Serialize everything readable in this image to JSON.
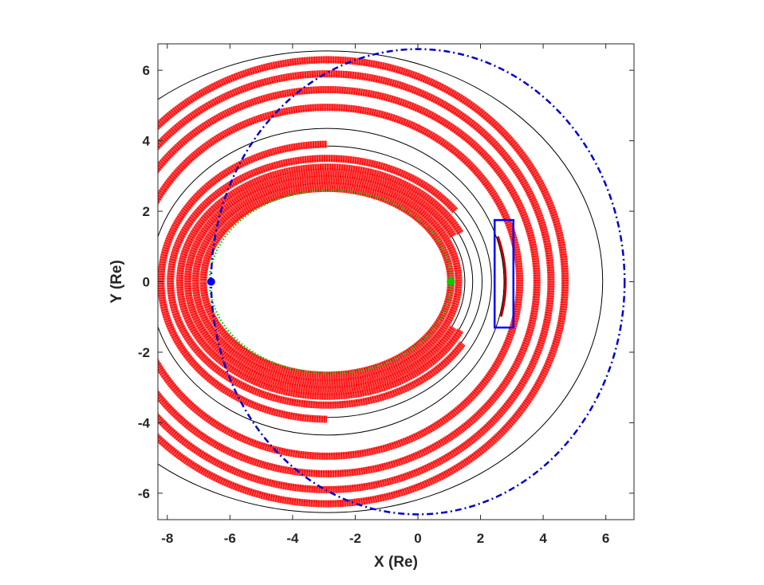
{
  "chart_data": {
    "type": "scatter",
    "title": "",
    "xlabel": "X (Re)",
    "ylabel": "Y (Re)",
    "xlim": [
      -8.3,
      6.9
    ],
    "ylim": [
      -6.75,
      6.75
    ],
    "xticks": [
      -8,
      -6,
      -4,
      -2,
      0,
      2,
      4,
      6
    ],
    "yticks": [
      -6,
      -4,
      -2,
      0,
      2,
      4,
      6
    ],
    "xtick_labels": [
      "-8",
      "-6",
      "-4",
      "-2",
      "0",
      "2",
      "4",
      "6"
    ],
    "ytick_labels": [
      "-6",
      "-4",
      "-2",
      "0",
      "2",
      "4",
      "6"
    ],
    "grid": false,
    "colors": {
      "drift_paths": "#ff0000",
      "reference_contours": "#000000",
      "outer_boundary": "#0000cc",
      "inner_boundary": "#00cc00",
      "highlight_box": "#0000ff",
      "axes": "#262626"
    },
    "reference_contours": [
      {
        "center": [
          -2.9,
          0
        ],
        "rx": 3.9,
        "ry": 2.6
      },
      {
        "center": [
          -2.9,
          0
        ],
        "rx": 4.15,
        "ry": 2.8
      },
      {
        "center": [
          -2.9,
          0
        ],
        "rx": 4.4,
        "ry": 3.0
      },
      {
        "center": [
          -2.9,
          0
        ],
        "rx": 4.65,
        "ry": 3.2
      },
      {
        "center": [
          -2.9,
          0
        ],
        "rx": 4.95,
        "ry": 3.45
      },
      {
        "center": [
          -2.9,
          0
        ],
        "rx": 5.25,
        "ry": 3.85
      },
      {
        "center": [
          -2.9,
          0
        ],
        "rx": 5.65,
        "ry": 4.35
      },
      {
        "center": [
          -2.9,
          0
        ],
        "rx": 6.1,
        "ry": 4.9
      },
      {
        "center": [
          -2.9,
          0
        ],
        "rx": 6.65,
        "ry": 5.4
      },
      {
        "center": [
          -2.9,
          0
        ],
        "rx": 7.1,
        "ry": 5.85
      },
      {
        "center": [
          -2.9,
          0
        ],
        "rx": 7.55,
        "ry": 6.25
      },
      {
        "center": [
          -2.9,
          0
        ],
        "rx": 8.8,
        "ry": 6.55
      }
    ],
    "drift_paths": [
      {
        "center": [
          -2.9,
          0
        ],
        "rx": 3.95,
        "ry": 2.65,
        "gap_deg": [
          0,
          0
        ]
      },
      {
        "center": [
          -2.9,
          0
        ],
        "rx": 4.2,
        "ry": 2.85,
        "gap_deg": [
          0,
          0
        ]
      },
      {
        "center": [
          -2.9,
          0
        ],
        "rx": 4.45,
        "ry": 3.05,
        "gap_deg": [
          -25,
          25
        ]
      },
      {
        "center": [
          -2.9,
          0
        ],
        "rx": 4.7,
        "ry": 3.25,
        "gap_deg": [
          -25,
          25
        ]
      },
      {
        "center": [
          -2.9,
          0
        ],
        "rx": 5.0,
        "ry": 3.5,
        "gap_deg": [
          -30,
          35
        ]
      },
      {
        "center": [
          -2.9,
          0
        ],
        "rx": 5.3,
        "ry": 3.9,
        "gap_deg": [
          -90,
          90
        ]
      },
      {
        "center": [
          -2.9,
          0
        ],
        "rx": 6.15,
        "ry": 4.95,
        "gap_deg": [
          0,
          0
        ]
      },
      {
        "center": [
          -2.9,
          0
        ],
        "rx": 6.7,
        "ry": 5.45,
        "gap_deg": [
          0,
          0
        ]
      },
      {
        "center": [
          -2.9,
          0
        ],
        "rx": 7.15,
        "ry": 5.9,
        "gap_deg": [
          0,
          0
        ]
      },
      {
        "center": [
          -2.9,
          0
        ],
        "rx": 7.6,
        "ry": 6.3,
        "gap_deg": [
          0,
          0
        ]
      }
    ],
    "highlighted_segment": {
      "center": [
        -2.9,
        0
      ],
      "rx": 5.7,
      "ry": 4.4,
      "from_deg": -13,
      "to_deg": 17
    },
    "outer_boundary": {
      "center": [
        0,
        0
      ],
      "rx": 6.6,
      "ry": 6.6,
      "style": "dash-dot"
    },
    "inner_boundary": {
      "center": [
        -2.8,
        0
      ],
      "rx": 3.85,
      "ry": 2.6,
      "style": "dotted"
    },
    "markers": [
      {
        "x": -6.6,
        "y": 0,
        "color": "#0000ff"
      },
      {
        "x": 1.05,
        "y": 0,
        "color": "#00cc00"
      }
    ],
    "highlight_box": {
      "x_range": [
        2.45,
        3.05
      ],
      "y_range": [
        -1.3,
        1.75
      ]
    }
  }
}
